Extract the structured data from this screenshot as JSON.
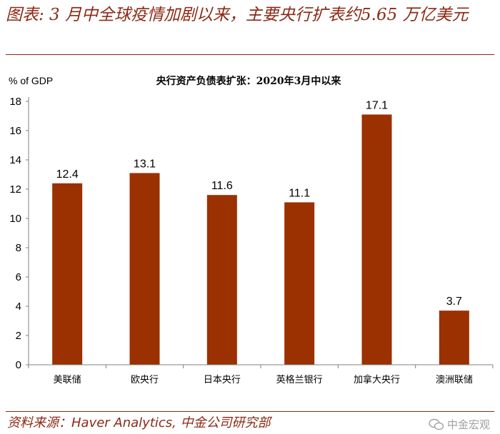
{
  "figure": {
    "title": "图表: 3 月中全球疫情加剧以来，主要央行扩表约5.65 万亿美元",
    "source": "资料来源：Haver Analytics,  中金公司研究部",
    "watermark": "中金宏观"
  },
  "colors": {
    "bar": "#9b3000",
    "accent": "#8b2a16",
    "axis": "#808080"
  },
  "chart_data": {
    "type": "bar",
    "title": "央行资产负债表扩张：2020年3月中以来",
    "ylabel": "% of GDP",
    "xlabel": "",
    "categories": [
      "美联储",
      "欧央行",
      "日本央行",
      "英格兰银行",
      "加拿大央行",
      "澳洲联储"
    ],
    "values": [
      12.4,
      13.1,
      11.6,
      11.1,
      17.1,
      3.7
    ],
    "data_labels": [
      "12.4",
      "13.1",
      "11.6",
      "11.1",
      "17.1",
      "3.7"
    ],
    "ylim": [
      0,
      18
    ],
    "yticks": [
      0,
      2,
      4,
      6,
      8,
      10,
      12,
      14,
      16,
      18
    ],
    "grid": false,
    "legend": "none"
  }
}
